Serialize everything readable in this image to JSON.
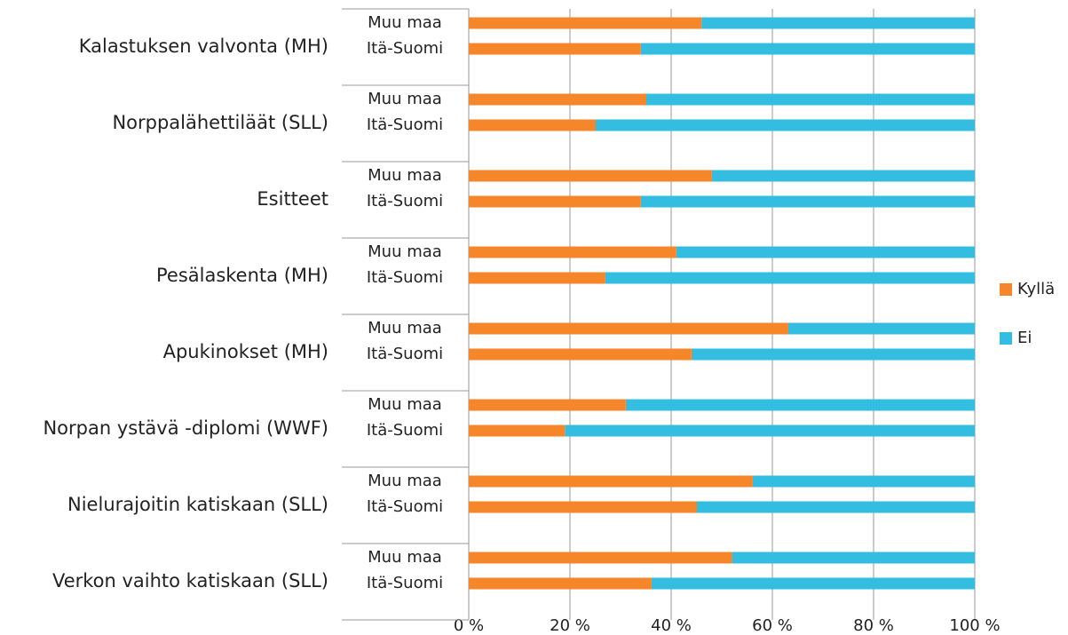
{
  "chart_data": {
    "type": "stacked-bar-horizontal",
    "groups": [
      "Kalastuksen valvonta (MH)",
      "Norppalähettiläät (SLL)",
      "Esitteet",
      "Pesälaskenta (MH)",
      "Apukinokset (MH)",
      "Norpan ystävä -diplomi (WWF)",
      "Nielurajoitin katiskaan (SLL)",
      "Verkon vaihto katiskaan (SLL)"
    ],
    "categories": [
      "Muu maa",
      "Itä-Suomi",
      "Muu maa",
      "Itä-Suomi",
      "Muu maa",
      "Itä-Suomi",
      "Muu maa",
      "Itä-Suomi",
      "Muu maa",
      "Itä-Suomi",
      "Muu maa",
      "Itä-Suomi",
      "Muu maa",
      "Itä-Suomi",
      "Muu maa",
      "Itä-Suomi"
    ],
    "series": [
      {
        "name": "Kyllä",
        "color": "#f5862a",
        "values": [
          46,
          34,
          35,
          25,
          48,
          34,
          41,
          27,
          63,
          44,
          31,
          19,
          56,
          45,
          52,
          36
        ]
      },
      {
        "name": "Ei",
        "color": "#33bde0",
        "values": [
          54,
          66,
          65,
          75,
          52,
          66,
          59,
          73,
          37,
          56,
          69,
          81,
          44,
          55,
          48,
          64
        ]
      }
    ],
    "xlim": [
      0,
      100
    ],
    "xticks": [
      {
        "value": 0,
        "label": "0 %"
      },
      {
        "value": 20,
        "label": "20 %"
      },
      {
        "value": 40,
        "label": "40 %"
      },
      {
        "value": 60,
        "label": "60 %"
      },
      {
        "value": 80,
        "label": "80 %"
      },
      {
        "value": 100,
        "label": "100 %"
      }
    ],
    "grid": true,
    "legend": "right"
  }
}
